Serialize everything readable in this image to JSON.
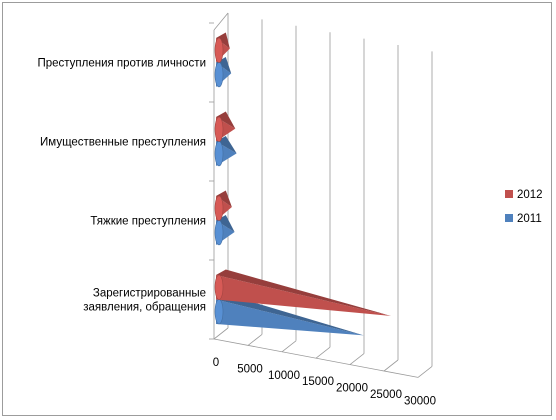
{
  "chart_data": {
    "type": "bar",
    "orientation": "horizontal-3d-cone",
    "categories": [
      "Зарегистрированные заявления, обращения",
      "Тяжкие преступления",
      "Имущественные преступления",
      "Преступления против личности"
    ],
    "category_lines": [
      [
        "Зарегистрированные",
        "заявления, обращения"
      ],
      [
        "Тяжкие преступления"
      ],
      [
        "Имущественные преступления"
      ],
      [
        "Преступления против личности"
      ]
    ],
    "series": [
      {
        "name": "2011",
        "color": "#4f81bd",
        "values": [
          21000,
          2000,
          2300,
          1500
        ]
      },
      {
        "name": "2012",
        "color": "#c0504d",
        "values": [
          25000,
          1600,
          2100,
          1300
        ]
      }
    ],
    "xticks": [
      "0",
      "5000",
      "10000",
      "15000",
      "20000",
      "25000",
      "30000"
    ],
    "xlim": [
      0,
      30000
    ],
    "grid": true,
    "legend": "right",
    "title": "",
    "xlabel": "",
    "ylabel": ""
  }
}
